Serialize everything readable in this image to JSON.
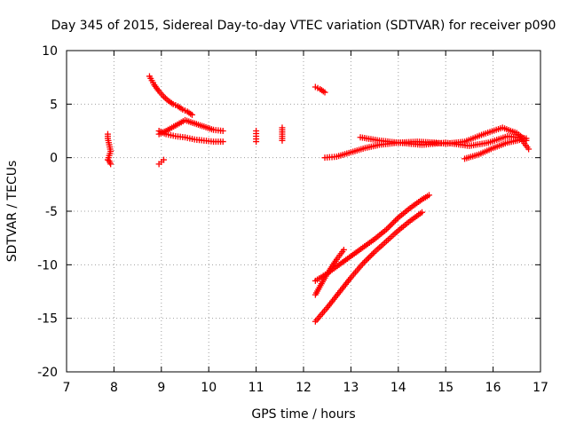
{
  "chart_data": {
    "type": "scatter",
    "title": "Day 345 of 2015, Sidereal Day-to-day VTEC variation (SDTVAR) for receiver p090",
    "xlabel": "GPS time / hours",
    "ylabel": "SDTVAR / TECUs",
    "xlim": [
      7,
      17
    ],
    "ylim": [
      -20,
      10
    ],
    "xticks": [
      7,
      8,
      9,
      10,
      11,
      12,
      13,
      14,
      15,
      16,
      17
    ],
    "yticks": [
      -20,
      -15,
      -10,
      -5,
      0,
      5,
      10
    ],
    "grid": true,
    "marker": "+",
    "color": "#ff0000",
    "segments": [
      {
        "x": [
          7.87,
          7.87,
          7.9,
          7.93,
          7.9,
          7.87,
          7.9,
          7.93
        ],
        "y": [
          2.2,
          1.8,
          1.2,
          0.6,
          0.2,
          -0.2,
          -0.3,
          -0.6
        ]
      },
      {
        "x": [
          8.75,
          8.85,
          8.95,
          9.05,
          9.15,
          9.25,
          9.35,
          9.45,
          9.55,
          9.65
        ],
        "y": [
          7.6,
          6.8,
          6.2,
          5.7,
          5.3,
          5.0,
          4.8,
          4.5,
          4.3,
          4.0
        ]
      },
      {
        "x": [
          8.95,
          9.0,
          9.05
        ],
        "y": [
          -0.6,
          -0.4,
          -0.2
        ]
      },
      {
        "x": [
          8.95,
          9.1,
          9.3,
          9.5,
          9.7,
          9.9,
          10.1,
          10.3
        ],
        "y": [
          2.2,
          2.5,
          3.0,
          3.5,
          3.2,
          2.9,
          2.6,
          2.5
        ]
      },
      {
        "x": [
          8.95,
          9.1,
          9.3,
          9.5,
          9.7,
          9.9,
          10.1,
          10.3
        ],
        "y": [
          2.5,
          2.2,
          2.0,
          1.9,
          1.7,
          1.6,
          1.5,
          1.5
        ]
      },
      {
        "x": [
          11.0,
          11.0,
          11.0
        ],
        "y": [
          2.5,
          2.0,
          1.5
        ]
      },
      {
        "x": [
          11.55,
          11.55,
          11.55
        ],
        "y": [
          2.8,
          2.0,
          1.6
        ]
      },
      {
        "x": [
          12.25,
          12.35,
          12.45
        ],
        "y": [
          6.6,
          6.4,
          6.1
        ]
      },
      {
        "x": [
          12.45,
          12.7,
          13.0,
          13.3,
          13.6,
          14.0,
          14.4,
          14.8,
          15.0,
          15.4,
          15.8,
          16.2,
          16.5,
          16.7
        ],
        "y": [
          0.0,
          0.1,
          0.5,
          0.9,
          1.2,
          1.4,
          1.5,
          1.4,
          1.3,
          1.5,
          2.2,
          2.8,
          2.3,
          1.6
        ]
      },
      {
        "x": [
          13.2,
          13.6,
          14.0,
          14.5,
          15.0,
          15.5,
          15.9,
          16.3,
          16.7
        ],
        "y": [
          1.9,
          1.6,
          1.4,
          1.2,
          1.4,
          1.1,
          1.4,
          2.0,
          1.8
        ]
      },
      {
        "x": [
          15.4,
          15.7,
          16.0,
          16.3,
          16.6,
          16.75
        ],
        "y": [
          -0.1,
          0.3,
          0.9,
          1.4,
          1.7,
          0.8
        ]
      },
      {
        "x": [
          12.25,
          12.5,
          12.75,
          13.0,
          13.25,
          13.5,
          13.75,
          14.0,
          14.25,
          14.5
        ],
        "y": [
          -15.3,
          -14.0,
          -12.6,
          -11.2,
          -9.9,
          -8.8,
          -7.8,
          -6.8,
          -5.9,
          -5.1
        ]
      },
      {
        "x": [
          12.25,
          12.4,
          12.55,
          12.7,
          12.85
        ],
        "y": [
          -12.8,
          -11.6,
          -10.5,
          -9.5,
          -8.6
        ]
      },
      {
        "x": [
          12.25,
          12.5,
          12.75,
          13.0,
          13.25,
          13.5,
          13.75,
          14.0,
          14.25,
          14.5,
          14.65
        ],
        "y": [
          -11.5,
          -10.8,
          -10.0,
          -9.2,
          -8.4,
          -7.6,
          -6.7,
          -5.6,
          -4.7,
          -3.9,
          -3.5
        ]
      }
    ]
  }
}
